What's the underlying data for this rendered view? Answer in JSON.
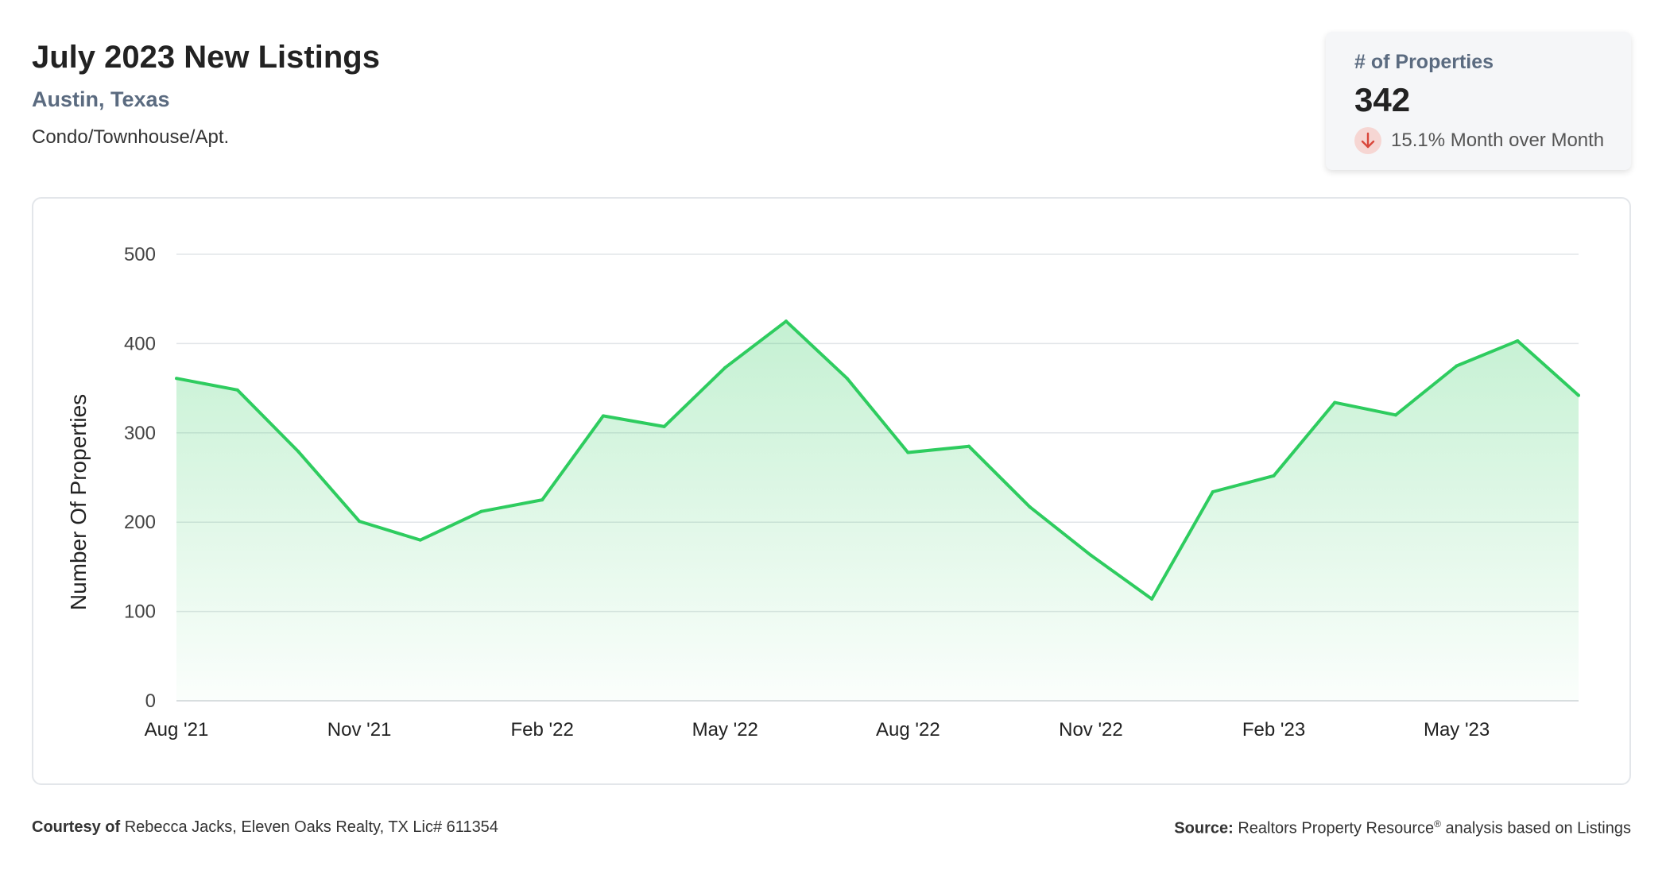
{
  "header": {
    "title": "July 2023 New Listings",
    "location": "Austin, Texas",
    "property_type": "Condo/Townhouse/Apt."
  },
  "kpi": {
    "label": "# of Properties",
    "value": "342",
    "change": "15.1% Month over Month",
    "direction_icon": "arrow-down-icon",
    "direction_color": "#d9473b"
  },
  "footer": {
    "courtesy_label": "Courtesy of",
    "courtesy_text": "Rebecca Jacks, Eleven Oaks Realty, TX Lic# 611354",
    "source_label": "Source:",
    "source_name": "Realtors Property Resource",
    "source_mark": "®",
    "source_text": "analysis based on Listings"
  },
  "chart_data": {
    "type": "area",
    "ylabel": "Number Of Properties",
    "ylim": [
      0,
      500
    ],
    "yticks": [
      0,
      100,
      200,
      300,
      400,
      500
    ],
    "x": [
      "Aug '21",
      "Sep '21",
      "Oct '21",
      "Nov '21",
      "Dec '21",
      "Jan '22",
      "Feb '22",
      "Mar '22",
      "Apr '22",
      "May '22",
      "Jun '22",
      "Jul '22",
      "Aug '22",
      "Sep '22",
      "Oct '22",
      "Nov '22",
      "Dec '22",
      "Jan '23",
      "Feb '23",
      "Mar '23",
      "Apr '23",
      "May '23",
      "Jun '23",
      "Jul '23"
    ],
    "xticks": [
      "Aug '21",
      "Nov '21",
      "Feb '22",
      "May '22",
      "Aug '22",
      "Nov '22",
      "Feb '23",
      "May '23"
    ],
    "values": [
      361,
      348,
      279,
      201,
      180,
      212,
      225,
      319,
      307,
      373,
      425,
      361,
      278,
      285,
      217,
      163,
      114,
      234,
      252,
      334,
      320,
      375,
      403,
      342
    ],
    "line_color": "#2ecc5f",
    "fill_color": "#2ecc5f",
    "grid": true
  }
}
